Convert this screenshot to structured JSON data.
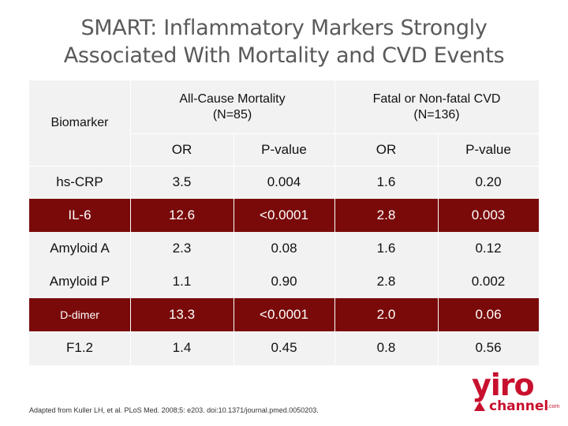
{
  "slide": {
    "title_line1": "SMART: Inflammatory Markers Strongly",
    "title_line2": "Associated With Mortality and CVD Events"
  },
  "table": {
    "biomarker_header": "Biomarker",
    "group1": {
      "line1": "All-Cause Mortality",
      "line2": "(N=85)"
    },
    "group2": {
      "line1": "Fatal or Non-fatal CVD",
      "line2": "(N=136)"
    },
    "subheaders": [
      "OR",
      "P-value",
      "OR",
      "P-value"
    ],
    "rows": [
      {
        "name": "hs-CRP",
        "or1": "3.5",
        "p1": "0.004",
        "or2": "1.6",
        "p2": "0.20",
        "highlight": false
      },
      {
        "name": "IL-6",
        "or1": "12.6",
        "p1": "<0.0001",
        "or2": "2.8",
        "p2": "0.003",
        "highlight": true
      },
      {
        "name": "Amyloid A",
        "or1": "2.3",
        "p1": "0.08",
        "or2": "1.6",
        "p2": "0.12",
        "highlight": false
      },
      {
        "name": "Amyloid P",
        "or1": "1.1",
        "p1": "0.90",
        "or2": "2.8",
        "p2": "0.002",
        "highlight": false
      },
      {
        "name": "D-dimer",
        "or1": "13.3",
        "p1": "<0.0001",
        "or2": "2.0",
        "p2": "0.06",
        "highlight": true
      },
      {
        "name": "F1.2",
        "or1": "1.4",
        "p1": "0.45",
        "or2": "0.8",
        "p2": "0.56",
        "highlight": false
      }
    ]
  },
  "footnote": "Adapted from Kuller LH, et al. PLoS Med. 2008;5: e203. doi:10.1371/journal.pmed.0050203.",
  "logo": {
    "main": "yiro",
    "sub": "channel",
    "tld": ".com"
  },
  "colors": {
    "highlight_row": "#7a0a0a",
    "title": "#5a5a5a",
    "logo": "#c8102e",
    "table_bg": "#f2f2f2"
  }
}
